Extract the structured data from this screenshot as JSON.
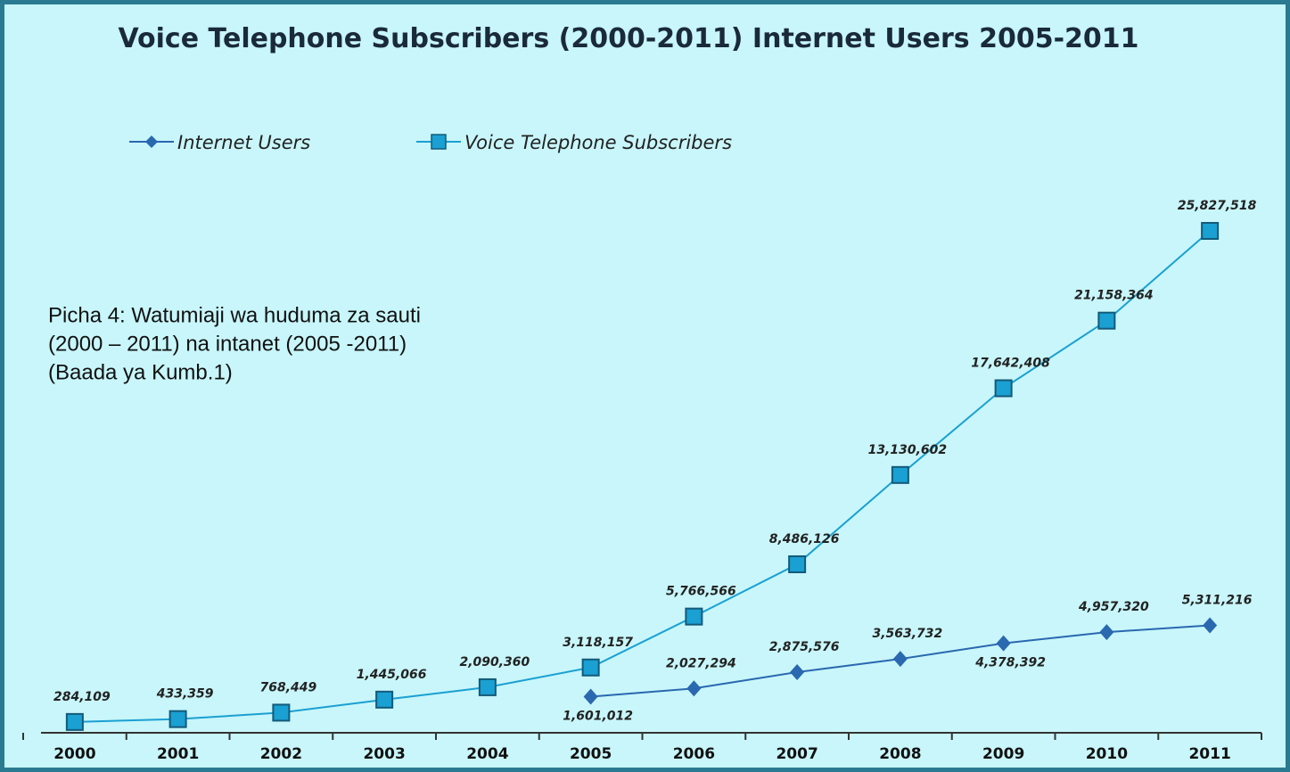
{
  "chart_data": {
    "type": "line",
    "title": "Voice Telephone Subscribers (2000-2011) Internet  Users 2005-2011",
    "annotation": [
      "Picha  4: Watumiaji wa huduma za sauti",
      "(2000 – 2011) na intanet  (2005 -2011)",
      "(Baada ya Kumb.1)"
    ],
    "categories": [
      "2000",
      "2001",
      "2002",
      "2003",
      "2004",
      "2005",
      "2006",
      "2007",
      "2008",
      "2009",
      "2010",
      "2011"
    ],
    "series": [
      {
        "name": "Internet Users",
        "color": "#2a68b0",
        "marker": "diamond",
        "values": [
          null,
          null,
          null,
          null,
          null,
          1601012,
          2027294,
          2875576,
          3563732,
          4378392,
          4957320,
          5311216
        ],
        "value_labels": [
          null,
          null,
          null,
          null,
          null,
          "1,601,012",
          "2,027,294",
          "2,875,576",
          "3,563,732",
          "4,378,392",
          "4,957,320",
          "5,311,216"
        ]
      },
      {
        "name": "Voice Telephone Subscribers",
        "color": "#1aa0d2",
        "marker": "square",
        "values": [
          284109,
          433359,
          768449,
          1445066,
          2090360,
          3118157,
          5766566,
          8486126,
          13130602,
          17642408,
          21158364,
          25827518
        ],
        "value_labels": [
          "284,109",
          "433,359",
          "768,449",
          "1,445,066",
          "2,090,360",
          "3,118,157",
          "5,766,566",
          "8,486,126",
          "13,130,602",
          "17,642,408",
          "21,158,364",
          "25,827,518"
        ]
      }
    ]
  }
}
